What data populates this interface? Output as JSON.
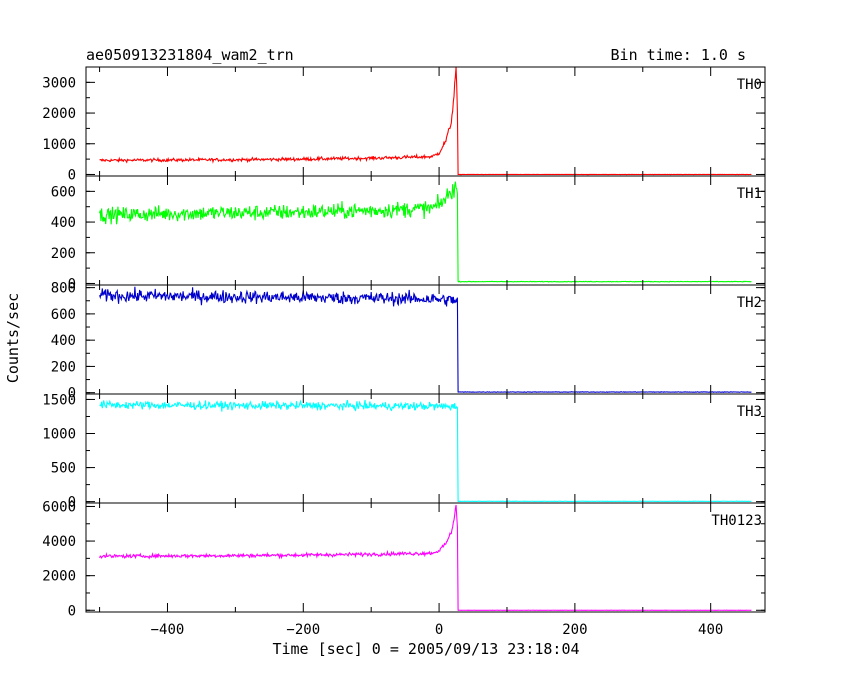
{
  "chart_data": {
    "type": "line",
    "title": "ae050913231804_wam2_trn",
    "title_right": "Bin time: 1.0 s",
    "xlabel": "Time [sec] 0 = 2005/09/13 23:18:04",
    "ylabel": "Counts/sec",
    "xlim": [
      -520,
      480
    ],
    "xticks": [
      -400,
      -200,
      0,
      200,
      400
    ],
    "xtick_labels": [
      "−400",
      "−200",
      "0",
      "200",
      "400"
    ],
    "bin_time_s": 1.0,
    "legend": "none",
    "grid": false,
    "panels": [
      {
        "name": "TH0",
        "color": "#ff0000",
        "ylim": [
          -50,
          3500
        ],
        "yticks": [
          0,
          1000,
          2000,
          3000
        ],
        "ytick_labels": [
          "0",
          "1000",
          "2000",
          "3000"
        ],
        "noise": 25,
        "points": [
          [
            -500,
            460
          ],
          [
            -400,
            470
          ],
          [
            -300,
            480
          ],
          [
            -200,
            500
          ],
          [
            -100,
            530
          ],
          [
            -10,
            580
          ],
          [
            0,
            700
          ],
          [
            10,
            1100
          ],
          [
            18,
            1700
          ],
          [
            22,
            2600
          ],
          [
            25,
            3500
          ],
          [
            27,
            2000
          ],
          [
            28,
            0
          ],
          [
            460,
            0
          ]
        ]
      },
      {
        "name": "TH1",
        "color": "#00ff00",
        "ylim": [
          -10,
          700
        ],
        "yticks": [
          0,
          200,
          400,
          600
        ],
        "ytick_labels": [
          "0",
          "200",
          "400",
          "600"
        ],
        "noise": 25,
        "points": [
          [
            -500,
            445
          ],
          [
            -400,
            455
          ],
          [
            -300,
            460
          ],
          [
            -200,
            465
          ],
          [
            -100,
            475
          ],
          [
            -10,
            490
          ],
          [
            0,
            510
          ],
          [
            10,
            555
          ],
          [
            20,
            610
          ],
          [
            25,
            640
          ],
          [
            27,
            560
          ],
          [
            28,
            12
          ],
          [
            460,
            12
          ]
        ]
      },
      {
        "name": "TH2",
        "color": "#0000cc",
        "ylim": [
          -10,
          820
        ],
        "yticks": [
          0,
          200,
          400,
          600,
          800
        ],
        "ytick_labels": [
          "0",
          "200",
          "400",
          "600",
          "800"
        ],
        "noise": 25,
        "points": [
          [
            -500,
            740
          ],
          [
            -400,
            735
          ],
          [
            -300,
            730
          ],
          [
            -200,
            725
          ],
          [
            -100,
            720
          ],
          [
            -20,
            715
          ],
          [
            0,
            710
          ],
          [
            20,
            705
          ],
          [
            27,
            700
          ],
          [
            28,
            5
          ],
          [
            460,
            5
          ]
        ]
      },
      {
        "name": "TH3",
        "color": "#00ffff",
        "ylim": [
          -20,
          1580
        ],
        "yticks": [
          0,
          500,
          1000,
          1500
        ],
        "ytick_labels": [
          "0",
          "500",
          "1000",
          "1500"
        ],
        "noise": 30,
        "points": [
          [
            -500,
            1420
          ],
          [
            -400,
            1415
          ],
          [
            -300,
            1410
          ],
          [
            -200,
            1410
          ],
          [
            -100,
            1405
          ],
          [
            0,
            1400
          ],
          [
            20,
            1395
          ],
          [
            27,
            1390
          ],
          [
            28,
            5
          ],
          [
            460,
            5
          ]
        ]
      },
      {
        "name": "TH0123",
        "color": "#ff00ff",
        "ylim": [
          -100,
          6200
        ],
        "yticks": [
          0,
          2000,
          4000,
          6000
        ],
        "ytick_labels": [
          "0",
          "2000",
          "4000",
          "6000"
        ],
        "noise": 50,
        "points": [
          [
            -500,
            3120
          ],
          [
            -400,
            3140
          ],
          [
            -300,
            3160
          ],
          [
            -200,
            3190
          ],
          [
            -100,
            3240
          ],
          [
            -10,
            3300
          ],
          [
            0,
            3450
          ],
          [
            10,
            3850
          ],
          [
            18,
            4500
          ],
          [
            22,
            5300
          ],
          [
            25,
            6100
          ],
          [
            27,
            4800
          ],
          [
            28,
            0
          ],
          [
            460,
            0
          ]
        ]
      }
    ]
  }
}
